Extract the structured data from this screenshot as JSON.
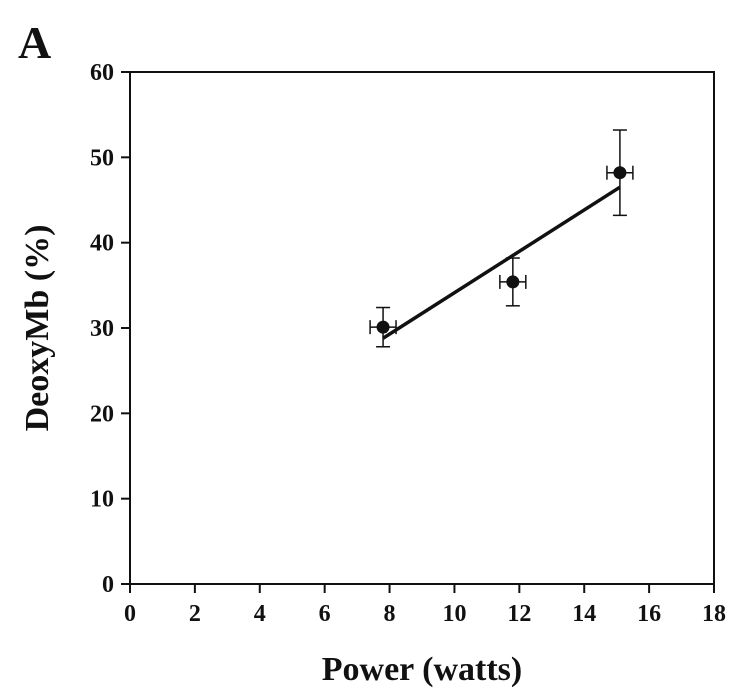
{
  "panel_label": "A",
  "chart_data": {
    "type": "scatter",
    "xlabel": "Power (watts)",
    "ylabel": "DeoxyMb (%)",
    "xlim": [
      0,
      18
    ],
    "ylim": [
      0,
      60
    ],
    "xticks": [
      0,
      2,
      4,
      6,
      8,
      10,
      12,
      14,
      16,
      18
    ],
    "yticks": [
      0,
      10,
      20,
      30,
      40,
      50,
      60
    ],
    "grid": false,
    "points": [
      {
        "x": 7.8,
        "y": 30.1,
        "xerr": 0.4,
        "yerr": 2.3
      },
      {
        "x": 11.8,
        "y": 35.4,
        "xerr": 0.4,
        "yerr": 2.8
      },
      {
        "x": 15.1,
        "y": 48.2,
        "xerr": 0.4,
        "yerr": 5.0
      }
    ],
    "fit_line": {
      "x": [
        7.8,
        15.1
      ],
      "y": [
        28.8,
        46.5
      ]
    }
  }
}
